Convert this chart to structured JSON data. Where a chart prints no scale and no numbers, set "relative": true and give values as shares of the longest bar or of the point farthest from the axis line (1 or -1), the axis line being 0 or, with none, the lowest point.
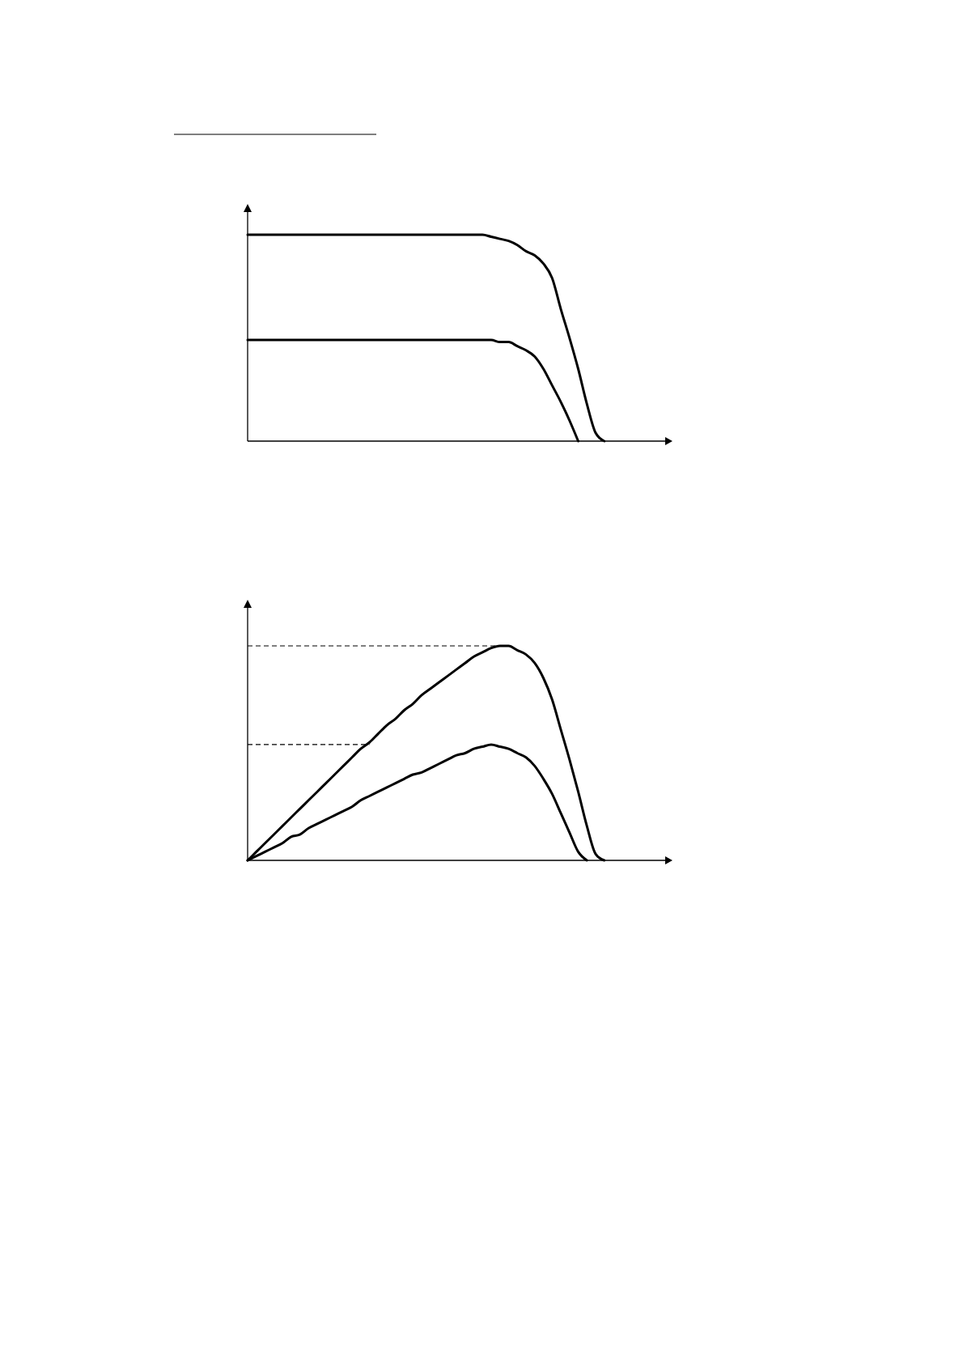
{
  "chart_data": [
    {
      "type": "line",
      "relative": true,
      "categories": [
        null,
        null,
        null,
        null,
        null,
        null,
        null,
        null,
        null,
        null,
        null,
        null,
        null,
        null,
        null,
        null,
        null,
        null,
        null,
        null,
        null,
        null,
        null,
        null,
        null,
        null,
        null,
        null,
        null,
        null,
        null,
        null,
        null,
        null,
        null,
        null,
        null,
        null,
        null,
        null,
        null,
        null,
        null,
        null,
        null,
        null,
        null,
        null,
        null
      ],
      "series": [
        {
          "color": "#000000",
          "values": [
            1,
            1,
            1,
            1,
            1,
            1,
            1,
            1,
            1,
            1,
            1,
            1,
            1,
            1,
            1,
            1,
            1,
            1,
            1,
            1,
            1,
            1,
            1,
            1,
            1,
            1,
            1,
            1,
            0.99,
            0.98,
            0.97,
            0.95,
            0.92,
            0.9,
            0.86,
            0.79,
            0.64,
            0.5,
            0.35,
            0.18,
            0.04,
            0,
            null,
            null,
            null,
            null,
            null,
            null,
            null
          ]
        },
        {
          "color": "#000000",
          "values": [
            0.49,
            0.49,
            0.49,
            0.49,
            0.49,
            0.49,
            0.49,
            0.49,
            0.49,
            0.49,
            0.49,
            0.49,
            0.49,
            0.49,
            0.49,
            0.49,
            0.49,
            0.49,
            0.49,
            0.49,
            0.49,
            0.49,
            0.49,
            0.49,
            0.49,
            0.49,
            0.49,
            0.49,
            0.49,
            0.48,
            0.48,
            0.46,
            0.44,
            0.41,
            0.35,
            0.27,
            0.19,
            0.1,
            0,
            null,
            null,
            null,
            null,
            null,
            null,
            null,
            null,
            null,
            null
          ]
        }
      ]
    },
    {
      "type": "line",
      "relative": true,
      "categories": [
        null,
        null,
        null,
        null,
        null,
        null,
        null,
        null,
        null,
        null,
        null,
        null,
        null,
        null,
        null,
        null,
        null,
        null,
        null,
        null,
        null,
        null,
        null,
        null,
        null,
        null,
        null,
        null,
        null,
        null,
        null,
        null,
        null,
        null,
        null,
        null,
        null,
        null,
        null,
        null,
        null,
        null,
        null,
        null,
        null,
        null,
        null,
        null,
        null
      ],
      "series": [
        {
          "color": "#000000",
          "values": [
            0,
            0.04,
            0.08,
            0.12,
            0.16,
            0.2,
            0.24,
            0.28,
            0.32,
            0.36,
            0.4,
            0.44,
            0.48,
            0.52,
            0.55,
            0.59,
            0.63,
            0.66,
            0.7,
            0.73,
            0.77,
            0.8,
            0.83,
            0.86,
            0.89,
            0.92,
            0.95,
            0.97,
            0.99,
            1,
            1,
            0.98,
            0.96,
            0.92,
            0.85,
            0.75,
            0.61,
            0.47,
            0.32,
            0.16,
            0.03,
            0,
            null,
            null,
            null,
            null,
            null,
            null,
            null
          ]
        },
        {
          "color": "#000000",
          "values": [
            0,
            0.02,
            0.04,
            0.06,
            0.08,
            0.11,
            0.12,
            0.15,
            0.17,
            0.19,
            0.21,
            0.23,
            0.25,
            0.28,
            0.3,
            0.32,
            0.34,
            0.36,
            0.38,
            0.4,
            0.41,
            0.43,
            0.45,
            0.47,
            0.49,
            0.5,
            0.52,
            0.53,
            0.54,
            0.53,
            0.52,
            0.5,
            0.48,
            0.44,
            0.38,
            0.31,
            0.22,
            0.13,
            0.04,
            0,
            null,
            null,
            null,
            null,
            null,
            null,
            null,
            null,
            null
          ]
        }
      ],
      "ref_lines": [
        {
          "axis": "y",
          "value": 1,
          "color": "#000000",
          "line_style": "dashed"
        },
        {
          "axis": "y",
          "value": 0.54,
          "color": "#000000",
          "line_style": "dashed"
        }
      ]
    }
  ]
}
